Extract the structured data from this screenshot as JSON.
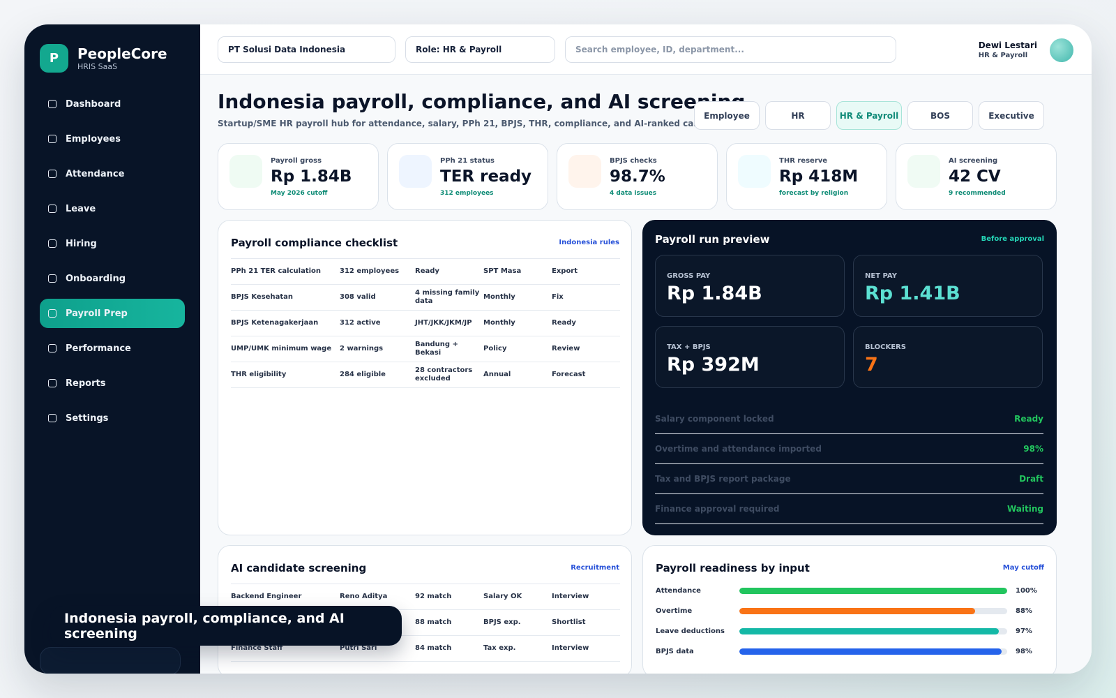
{
  "sidebar": {
    "logo_letter": "P",
    "brand_name": "PeopleCore",
    "brand_sub": "HRIS SaaS",
    "items": [
      {
        "label": "Dashboard"
      },
      {
        "label": "Employees"
      },
      {
        "label": "Attendance"
      },
      {
        "label": "Leave"
      },
      {
        "label": "Hiring"
      },
      {
        "label": "Onboarding"
      },
      {
        "label": "Payroll Prep",
        "active": true
      },
      {
        "label": "Performance"
      },
      {
        "label": "Reports"
      },
      {
        "label": "Settings"
      }
    ]
  },
  "topbar": {
    "company": "PT Solusi Data Indonesia",
    "role": "Role: HR & Payroll",
    "search_placeholder": "Search employee, ID, department...",
    "user_name": "Dewi Lestari",
    "user_role": "HR & Payroll"
  },
  "page": {
    "title": "Indonesia payroll, compliance, and AI screening",
    "subtitle": "Startup/SME HR payroll hub for attendance, salary, PPh 21, BPJS, THR, compliance, and AI-ranked candidates.",
    "role_tabs": [
      "Employee",
      "HR",
      "HR & Payroll",
      "BOS",
      "Executive"
    ]
  },
  "kpis": [
    {
      "label": "Payroll gross",
      "value": "Rp 1.84B",
      "note": "May 2026 cutoff",
      "tint": "#effbf3"
    },
    {
      "label": "PPh 21 status",
      "value": "TER ready",
      "note": "312 employees",
      "tint": "#eef5ff"
    },
    {
      "label": "BPJS checks",
      "value": "98.7%",
      "note": "4 data issues",
      "tint": "#fff4ec"
    },
    {
      "label": "THR reserve",
      "value": "Rp 418M",
      "note": "forecast by religion",
      "tint": "#effcff"
    },
    {
      "label": "AI screening",
      "value": "42 CV",
      "note": "9 recommended",
      "tint": "#f0fbf4"
    }
  ],
  "compliance": {
    "title": "Payroll compliance checklist",
    "link": "Indonesia rules",
    "rows": [
      [
        "PPh 21 TER calculation",
        "312 employees",
        "Ready",
        "SPT Masa",
        "Export"
      ],
      [
        "BPJS Kesehatan",
        "308 valid",
        "4 missing family data",
        "Monthly",
        "Fix"
      ],
      [
        "BPJS Ketenagakerjaan",
        "312 active",
        "JHT/JKK/JKM/JP",
        "Monthly",
        "Ready"
      ],
      [
        "UMP/UMK minimum wage",
        "2 warnings",
        "Bandung + Bekasi",
        "Policy",
        "Review"
      ],
      [
        "THR eligibility",
        "284 eligible",
        "28 contractors excluded",
        "Annual",
        "Forecast"
      ]
    ]
  },
  "payroll_run": {
    "title": "Payroll run preview",
    "link": "Before approval",
    "stats": [
      {
        "label": "GROSS PAY",
        "value": "Rp 1.84B",
        "color": "#ffffff"
      },
      {
        "label": "NET PAY",
        "value": "Rp 1.41B",
        "color": "#5ce0d2"
      },
      {
        "label": "TAX + BPJS",
        "value": "Rp 392M",
        "color": "#ffffff"
      },
      {
        "label": "BLOCKERS",
        "value": "7",
        "color": "#f97316"
      }
    ],
    "checks": [
      {
        "label": "Salary component locked",
        "status": "Ready"
      },
      {
        "label": "Overtime and attendance imported",
        "status": "98%"
      },
      {
        "label": "Tax and BPJS report package",
        "status": "Draft"
      },
      {
        "label": "Finance approval required",
        "status": "Waiting"
      }
    ]
  },
  "screening": {
    "title": "AI candidate screening",
    "link": "Recruitment",
    "rows": [
      [
        "Backend Engineer",
        "Reno Aditya",
        "92 match",
        "Salary OK",
        "Interview"
      ],
      [
        "",
        "",
        "88 match",
        "BPJS exp.",
        "Shortlist"
      ],
      [
        "Finance Staff",
        "Putri Sari",
        "84 match",
        "Tax exp.",
        "Interview"
      ]
    ]
  },
  "readiness": {
    "title": "Payroll readiness by input",
    "link": "May cutoff",
    "items": [
      {
        "label": "Attendance",
        "value": "100%",
        "fraction": 1.0,
        "color": "#22c55e"
      },
      {
        "label": "Overtime",
        "value": "88%",
        "fraction": 0.88,
        "color": "#f97316"
      },
      {
        "label": "Leave deductions",
        "value": "97%",
        "fraction": 0.97,
        "color": "#14b8a6"
      },
      {
        "label": "BPJS data",
        "value": "98%",
        "fraction": 0.98,
        "color": "#2563eb"
      }
    ]
  },
  "toast": {
    "text": "Indonesia payroll, compliance, and AI screening"
  }
}
